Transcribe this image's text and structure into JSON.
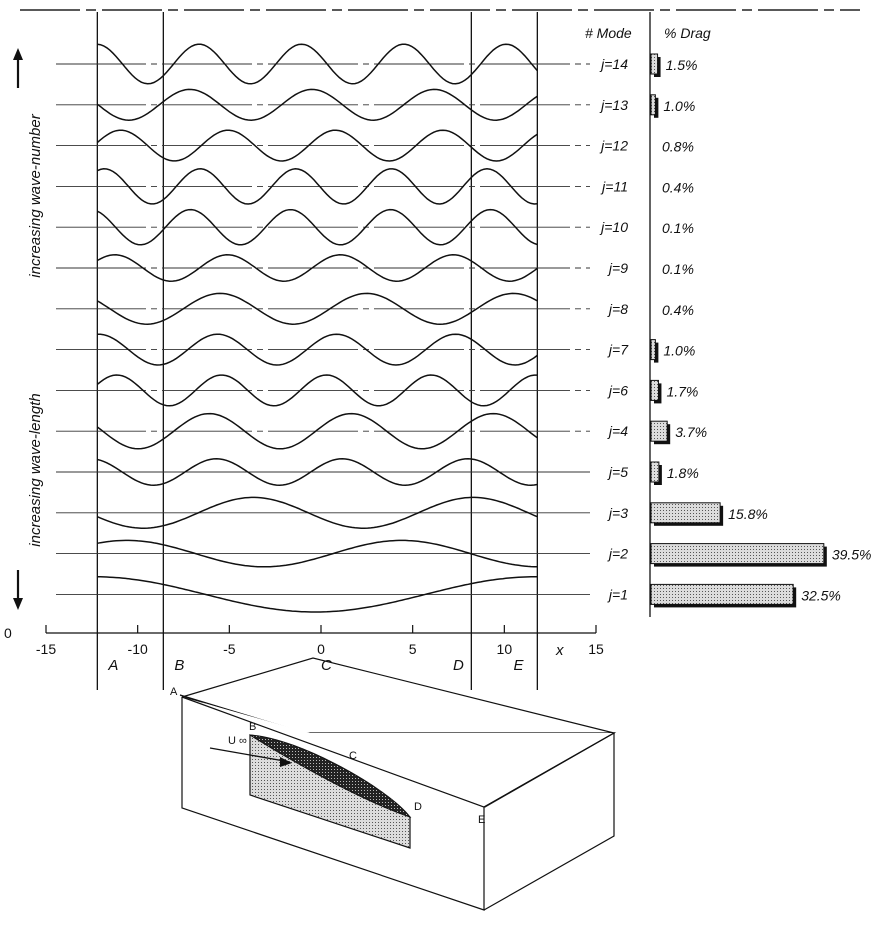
{
  "chart_data": {
    "type": "line",
    "title": "",
    "xlabel": "x",
    "xlim": [
      -15,
      15
    ],
    "ylim": [
      0,
      15
    ],
    "x_ticks": [
      "-15",
      "-10",
      "-5",
      "0",
      "5",
      "10",
      "15"
    ],
    "y_tick_zero": "0",
    "y_labels": {
      "top": "increasing wave-number",
      "bottom": "increasing wave-length"
    },
    "regions": [
      {
        "label": "A",
        "x_start": -12.2,
        "x_end": -8.6
      },
      {
        "label": "B",
        "x_start": -8.6,
        "x_end": 8.2
      },
      {
        "label": "C",
        "x_start": -8.6,
        "x_end": 8.2
      },
      {
        "label": "D",
        "x_start": -8.6,
        "x_end": 8.2
      },
      {
        "label": "E",
        "x_start": 8.2,
        "x_end": 11.8
      }
    ],
    "region_boundaries_x": [
      -12.2,
      -8.6,
      8.2,
      11.8
    ],
    "columns": {
      "mode": "# Mode",
      "drag": "% Drag"
    },
    "modes": [
      {
        "mode": "j=14",
        "drag_label": "1.5%",
        "drag": 1.5,
        "amp": 0.9,
        "waves": 4.3,
        "phase": 1.6
      },
      {
        "mode": "j=13",
        "drag_label": "1.0%",
        "drag": 1.0,
        "amp": 0.7,
        "waves": 3.6,
        "phase": 3.1
      },
      {
        "mode": "j=12",
        "drag_label": "0.8%",
        "drag": 0.8,
        "amp": 0.7,
        "waves": 4.1,
        "phase": 0.2
      },
      {
        "mode": "j=11",
        "drag_label": "0.4%",
        "drag": 0.4,
        "amp": 0.8,
        "waves": 4.6,
        "phase": 1.1
      },
      {
        "mode": "j=10",
        "drag_label": "0.1%",
        "drag": 0.1,
        "amp": 0.8,
        "waves": 4.4,
        "phase": 2.0
      },
      {
        "mode": "j=9",
        "drag_label": "0.1%",
        "drag": 0.1,
        "amp": 0.6,
        "waves": 3.9,
        "phase": 0.6
      },
      {
        "mode": "j=8",
        "drag_label": "0.4%",
        "drag": 0.4,
        "amp": 0.7,
        "waves": 3.0,
        "phase": 2.6
      },
      {
        "mode": "j=7",
        "drag_label": "1.0%",
        "drag": 1.0,
        "amp": 0.7,
        "waves": 3.7,
        "phase": 1.5
      },
      {
        "mode": "j=6",
        "drag_label": "1.7%",
        "drag": 1.7,
        "amp": 0.7,
        "waves": 4.2,
        "phase": 0.4
      },
      {
        "mode": "j=4",
        "drag_label": "3.7%",
        "drag": 3.7,
        "amp": 0.8,
        "waves": 3.1,
        "phase": 2.9
      },
      {
        "mode": "j=5",
        "drag_label": "1.8%",
        "drag": 1.8,
        "amp": 0.6,
        "waves": 3.5,
        "phase": 1.9
      },
      {
        "mode": "j=3",
        "drag_label": "15.8%",
        "drag": 15.8,
        "amp": 0.7,
        "waves": 2.0,
        "phase": 3.4
      },
      {
        "mode": "j=2",
        "drag_label": "39.5%",
        "drag": 39.5,
        "amp": 0.6,
        "waves": 1.6,
        "phase": 0.9
      },
      {
        "mode": "j=1",
        "drag_label": "32.5%",
        "drag": 32.5,
        "amp": 0.8,
        "waves": 1.0,
        "phase": 1.6
      }
    ]
  },
  "diagram": {
    "velocity_label": "U ∞",
    "corner_labels": [
      "A",
      "B",
      "C",
      "D",
      "E"
    ]
  }
}
